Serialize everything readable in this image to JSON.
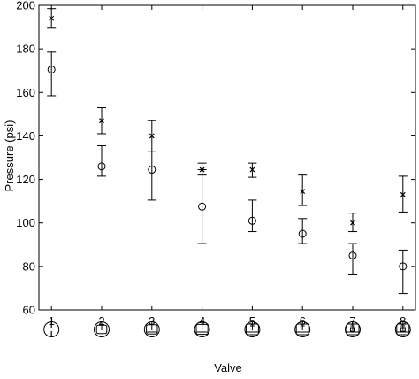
{
  "chart_data": {
    "type": "scatter",
    "title": "",
    "xlabel": "Valve",
    "ylabel": "Pressure (psi)",
    "xlim": [
      0.75,
      8.25
    ],
    "ylim": [
      60,
      200
    ],
    "grid": false,
    "legend": "none",
    "categories": [
      "1",
      "2",
      "3",
      "4",
      "5",
      "6",
      "7",
      "8"
    ],
    "x_ticks": [
      "1",
      "2",
      "3",
      "4",
      "5",
      "6",
      "7",
      "8"
    ],
    "y_ticks": [
      "60",
      "80",
      "100",
      "120",
      "140",
      "160",
      "180",
      "200"
    ],
    "series": [
      {
        "marker": "x",
        "x": [
          1,
          2,
          3,
          4,
          5,
          6,
          7,
          8
        ],
        "y": [
          194,
          147,
          140,
          124.5,
          124.5,
          114.5,
          100,
          113
        ],
        "err_low": [
          189.5,
          141,
          133,
          122,
          121,
          108,
          96,
          105
        ],
        "err_high": [
          198.5,
          153,
          147,
          127.5,
          127.5,
          122,
          104.5,
          121.5
        ]
      },
      {
        "marker": "o",
        "x": [
          1,
          2,
          3,
          4,
          5,
          6,
          7,
          8
        ],
        "y": [
          170.5,
          126,
          124.5,
          107.5,
          101,
          95,
          85,
          80
        ],
        "err_low": [
          158.5,
          121.5,
          110.5,
          90.5,
          96,
          90.5,
          76.5,
          67.5
        ],
        "err_high": [
          178.5,
          135.5,
          133,
          124.5,
          110.5,
          102,
          90.5,
          87.5
        ]
      }
    ],
    "valve_icons": [
      "valve-1-icon",
      "valve-2-icon",
      "valve-3-icon",
      "valve-4-icon",
      "valve-5-icon",
      "valve-6-icon",
      "valve-7-icon",
      "valve-8-icon"
    ],
    "colors": {
      "ink": "#000000",
      "background": "#ffffff"
    }
  }
}
